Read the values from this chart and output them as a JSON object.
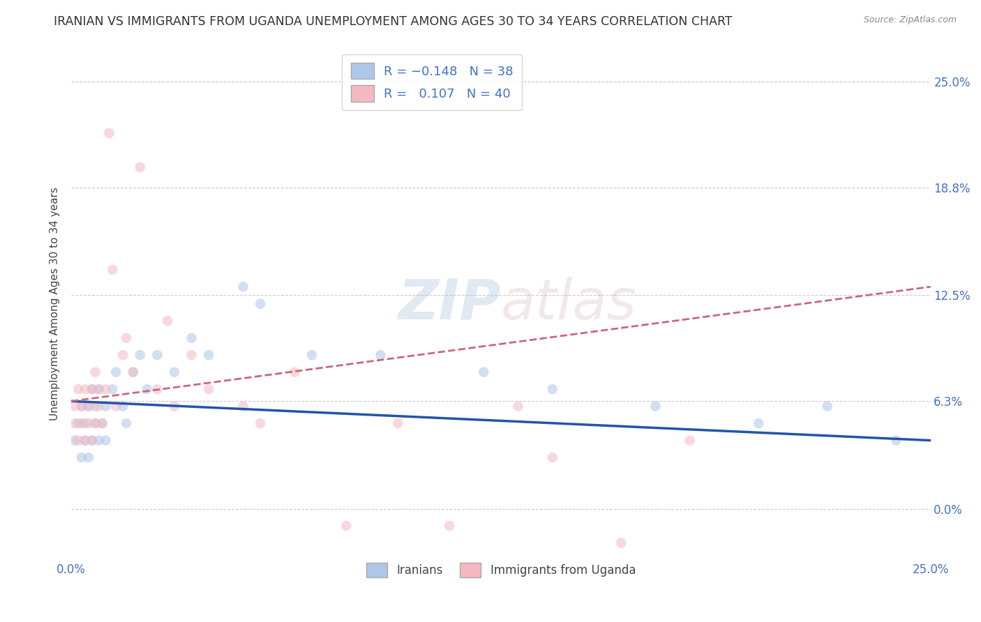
{
  "title": "IRANIAN VS IMMIGRANTS FROM UGANDA UNEMPLOYMENT AMONG AGES 30 TO 34 YEARS CORRELATION CHART",
  "source": "Source: ZipAtlas.com",
  "ylabel": "Unemployment Among Ages 30 to 34 years",
  "xlim": [
    0.0,
    0.25
  ],
  "ylim": [
    -0.03,
    0.27
  ],
  "ytick_vals": [
    0.0,
    0.063,
    0.125,
    0.188,
    0.25
  ],
  "ytick_labels": [
    "0.0%",
    "6.3%",
    "12.5%",
    "18.8%",
    "25.0%"
  ],
  "xtick_vals": [
    0.0,
    0.05,
    0.1,
    0.15,
    0.2,
    0.25
  ],
  "xtick_labels": [
    "0.0%",
    "",
    "",
    "",
    "",
    "25.0%"
  ],
  "legend_labels": [
    "Iranians",
    "Immigrants from Uganda"
  ],
  "iranian_color": "#aec6e8",
  "ugandan_color": "#f4b8c1",
  "iranian_line_color": "#2255aa",
  "ugandan_line_color": "#cc6677",
  "background_color": "#ffffff",
  "grid_color": "#cccccc",
  "title_fontsize": 12.5,
  "label_fontsize": 11,
  "tick_fontsize": 12,
  "marker_size": 110,
  "marker_alpha": 0.55,
  "watermark_alpha": 0.1,
  "iranian_x": [
    0.001,
    0.002,
    0.003,
    0.003,
    0.004,
    0.004,
    0.005,
    0.005,
    0.006,
    0.006,
    0.007,
    0.007,
    0.008,
    0.008,
    0.009,
    0.01,
    0.01,
    0.012,
    0.013,
    0.015,
    0.016,
    0.018,
    0.02,
    0.022,
    0.025,
    0.03,
    0.035,
    0.04,
    0.05,
    0.055,
    0.07,
    0.09,
    0.12,
    0.14,
    0.17,
    0.2,
    0.22,
    0.24
  ],
  "iranian_y": [
    0.04,
    0.05,
    0.03,
    0.06,
    0.04,
    0.05,
    0.03,
    0.06,
    0.04,
    0.07,
    0.05,
    0.06,
    0.04,
    0.07,
    0.05,
    0.06,
    0.04,
    0.07,
    0.08,
    0.06,
    0.05,
    0.08,
    0.09,
    0.07,
    0.09,
    0.08,
    0.1,
    0.09,
    0.13,
    0.12,
    0.09,
    0.09,
    0.08,
    0.07,
    0.06,
    0.05,
    0.06,
    0.04
  ],
  "ugandan_x": [
    0.001,
    0.001,
    0.002,
    0.002,
    0.003,
    0.003,
    0.004,
    0.004,
    0.005,
    0.005,
    0.006,
    0.006,
    0.007,
    0.007,
    0.008,
    0.008,
    0.009,
    0.01,
    0.011,
    0.012,
    0.013,
    0.015,
    0.016,
    0.018,
    0.02,
    0.025,
    0.028,
    0.03,
    0.035,
    0.04,
    0.05,
    0.055,
    0.065,
    0.08,
    0.095,
    0.11,
    0.13,
    0.14,
    0.16,
    0.18
  ],
  "ugandan_y": [
    0.05,
    0.06,
    0.04,
    0.07,
    0.05,
    0.06,
    0.04,
    0.07,
    0.05,
    0.06,
    0.04,
    0.07,
    0.05,
    0.08,
    0.06,
    0.07,
    0.05,
    0.07,
    0.22,
    0.14,
    0.06,
    0.09,
    0.1,
    0.08,
    0.2,
    0.07,
    0.11,
    0.06,
    0.09,
    0.07,
    0.06,
    0.05,
    0.08,
    -0.01,
    0.05,
    -0.01,
    0.06,
    0.03,
    -0.02,
    0.04
  ]
}
